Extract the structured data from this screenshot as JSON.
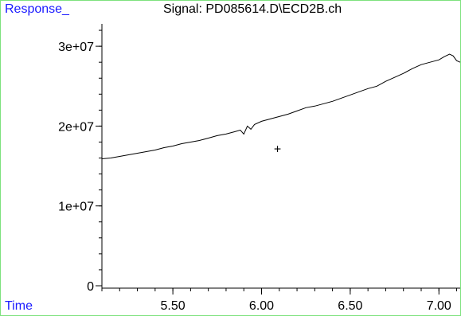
{
  "colors": {
    "frame": "#7de27d",
    "label": "#1a1aff",
    "axis": "#000000",
    "trace": "#000000"
  },
  "chart_data": {
    "type": "line",
    "title": "Signal: PD085614.D\\ECD2B.ch",
    "xlabel": "Time",
    "ylabel": "Response_",
    "xlim": [
      5.1,
      7.12
    ],
    "ylim": [
      -300000,
      34000000
    ],
    "x_ticks": [
      {
        "value": 5.5,
        "label": "5.50"
      },
      {
        "value": 6.0,
        "label": "6.00"
      },
      {
        "value": 6.5,
        "label": "6.50"
      },
      {
        "value": 7.0,
        "label": "7.00"
      }
    ],
    "x_minor_step": 0.1,
    "y_ticks": [
      {
        "value": 0,
        "label": "0"
      },
      {
        "value": 10000000,
        "label": "1e+07"
      },
      {
        "value": 20000000,
        "label": "2e+07"
      },
      {
        "value": 30000000,
        "label": "3e+07"
      }
    ],
    "y_minor_step": 2000000,
    "grid": false,
    "cursor_marker": {
      "x": 6.09,
      "y": 17200000,
      "symbol": "+"
    },
    "series": [
      {
        "x": [
          5.1,
          5.15,
          5.2,
          5.25,
          5.3,
          5.35,
          5.4,
          5.45,
          5.5,
          5.55,
          5.6,
          5.65,
          5.7,
          5.75,
          5.8,
          5.85,
          5.88,
          5.9,
          5.92,
          5.94,
          5.96,
          6.0,
          6.05,
          6.1,
          6.15,
          6.2,
          6.25,
          6.3,
          6.35,
          6.4,
          6.45,
          6.5,
          6.55,
          6.6,
          6.65,
          6.7,
          6.75,
          6.8,
          6.85,
          6.9,
          6.95,
          7.0,
          7.03,
          7.06,
          7.08,
          7.1,
          7.12
        ],
        "values": [
          15900000,
          16000000,
          16200000,
          16400000,
          16600000,
          16800000,
          17000000,
          17300000,
          17500000,
          17800000,
          18000000,
          18200000,
          18500000,
          18800000,
          19000000,
          19300000,
          19500000,
          19000000,
          20000000,
          19600000,
          20200000,
          20600000,
          20900000,
          21200000,
          21500000,
          21900000,
          22300000,
          22500000,
          22800000,
          23100000,
          23500000,
          23900000,
          24300000,
          24700000,
          25000000,
          25600000,
          26100000,
          26600000,
          27200000,
          27700000,
          28000000,
          28300000,
          28700000,
          29000000,
          28800000,
          28200000,
          28000000
        ]
      }
    ]
  }
}
